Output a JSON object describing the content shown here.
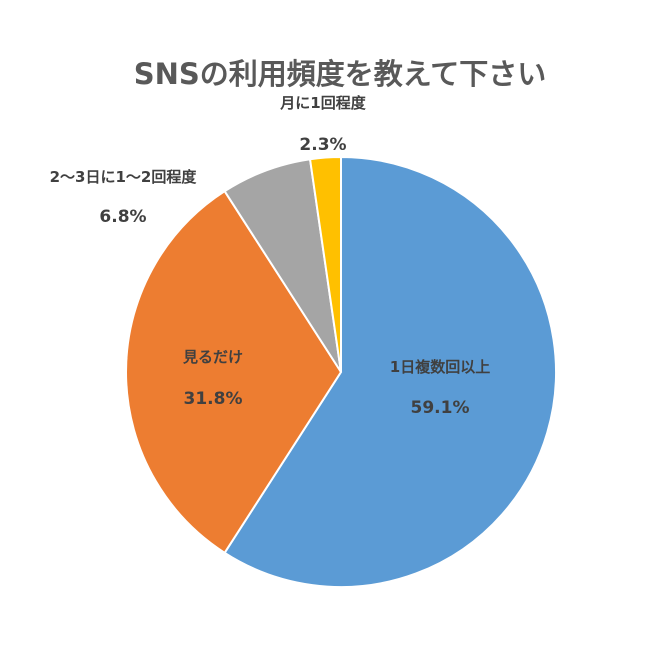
{
  "chart_data": {
    "type": "pie",
    "title": "SNSの利用頻度を教えて下さい",
    "categories": [
      "1日複数回以上",
      "見るだけ",
      "2～3日に1～2回程度",
      "月に1回程度"
    ],
    "values": [
      59.1,
      31.8,
      6.8,
      2.3
    ],
    "value_labels": [
      "59.1%",
      "31.8%",
      "6.8%",
      "2.3%"
    ],
    "colors": [
      "#5B9BD5",
      "#ED7D31",
      "#A5A5A5",
      "#FFC000"
    ],
    "start_angle": "12 o'clock",
    "direction": "clockwise",
    "legend": "none"
  }
}
